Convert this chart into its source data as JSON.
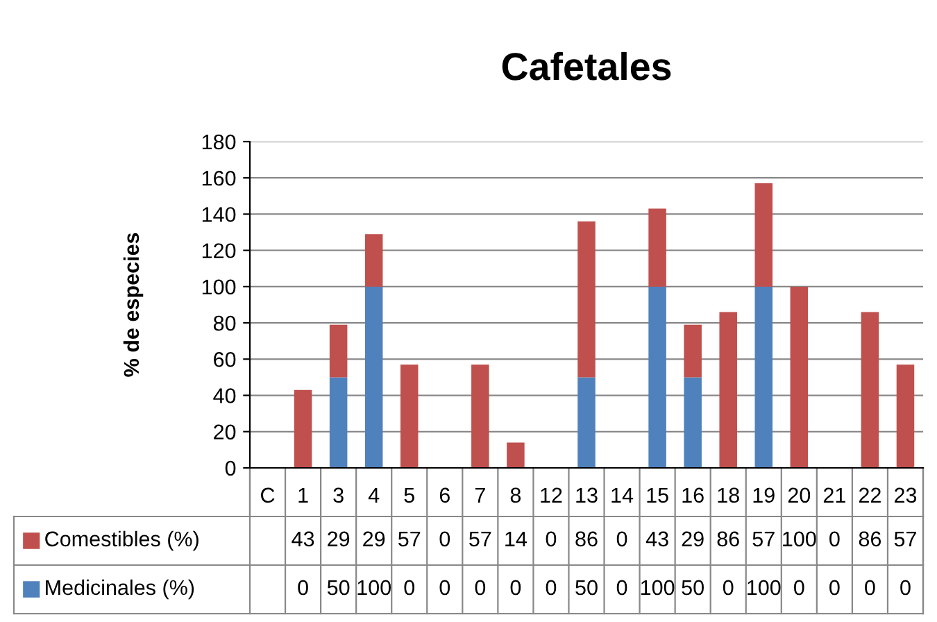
{
  "chart_data": {
    "type": "bar",
    "title": "Cafetales",
    "ylabel": "% de especies",
    "categories": [
      "C",
      "1",
      "3",
      "4",
      "5",
      "6",
      "7",
      "8",
      "12",
      "13",
      "14",
      "15",
      "16",
      "18",
      "19",
      "20",
      "21",
      "22",
      "23"
    ],
    "series": [
      {
        "name": "Medicinales (%)",
        "color": "#4f81bd",
        "values": [
          null,
          0,
          50,
          100,
          0,
          0,
          0,
          0,
          0,
          50,
          0,
          100,
          50,
          0,
          100,
          0,
          0,
          0,
          0
        ]
      },
      {
        "name": "Comestibles (%)",
        "color": "#c0504d",
        "values": [
          null,
          43,
          29,
          29,
          57,
          0,
          57,
          14,
          0,
          86,
          0,
          43,
          29,
          86,
          57,
          100,
          0,
          86,
          57
        ]
      }
    ],
    "stacked": true,
    "data_labels": true,
    "ylim": [
      0,
      180
    ],
    "yticks": [
      0,
      20,
      40,
      60,
      80,
      100,
      120,
      140,
      160,
      180
    ],
    "grid": "y",
    "legend": "bottom left"
  }
}
